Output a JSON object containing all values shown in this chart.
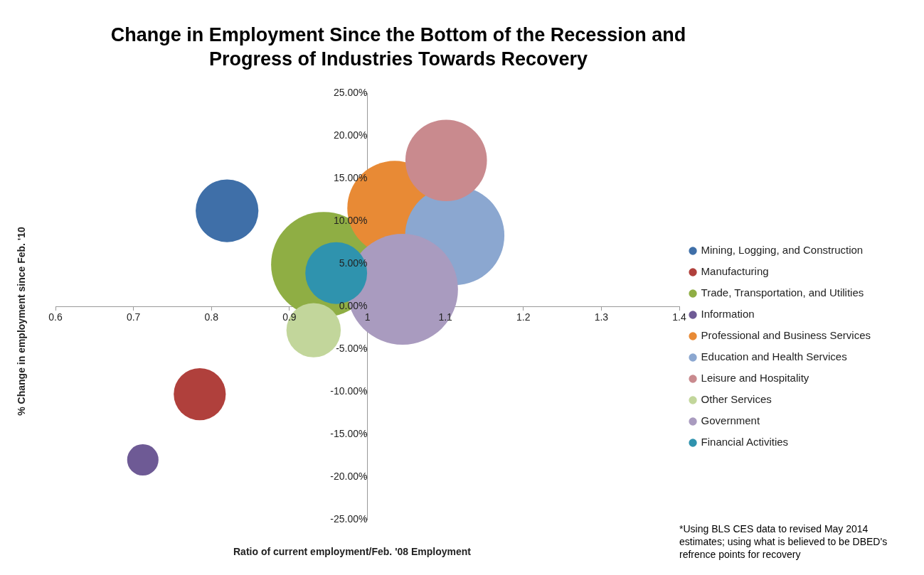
{
  "chart_data": {
    "type": "bubble",
    "title": "Change in Employment Since the Bottom of the Recession and Progress of Industries Towards Recovery",
    "xlabel": "Ratio of current employment/Feb. '08 Employment",
    "ylabel": "% Change in employment since Feb. '10",
    "xlim": [
      0.6,
      1.4
    ],
    "xticks": [
      0.6,
      0.7,
      0.8,
      0.9,
      1,
      1.1,
      1.2,
      1.3,
      1.4
    ],
    "ylim": [
      -25,
      25
    ],
    "yticks": [
      {
        "value": -25,
        "label": "-25.00%"
      },
      {
        "value": -20,
        "label": "-20.00%"
      },
      {
        "value": -15,
        "label": "-15.00%"
      },
      {
        "value": -10,
        "label": "-10.00%"
      },
      {
        "value": -5,
        "label": "-5.00%"
      },
      {
        "value": 0,
        "label": "0.00%"
      },
      {
        "value": 5,
        "label": "5.00%"
      },
      {
        "value": 10,
        "label": "10.00%"
      },
      {
        "value": 15,
        "label": "15.00%"
      },
      {
        "value": 20,
        "label": "20.00%"
      },
      {
        "value": 25,
        "label": "25.00%"
      }
    ],
    "legend": "right",
    "marker": "circle",
    "series": [
      {
        "name": "Mining, Logging, and Construction",
        "color": "#3f6fa8",
        "x": [
          0.82
        ],
        "values": [
          11.2
        ],
        "sizes": [
          0.32
        ]
      },
      {
        "name": "Manufacturing",
        "color": "#b0403c",
        "x": [
          0.785
        ],
        "values": [
          -10.3
        ],
        "sizes": [
          0.22
        ]
      },
      {
        "name": "Trade, Transportation, and Utilities",
        "color": "#8fae44",
        "x": [
          0.944
        ],
        "values": [
          4.9
        ],
        "sizes": [
          0.9
        ]
      },
      {
        "name": "Information",
        "color": "#6e5a95",
        "x": [
          0.712
        ],
        "values": [
          -18
        ],
        "sizes": [
          0.08
        ]
      },
      {
        "name": "Professional and Business Services",
        "color": "#e88a35",
        "x": [
          1.035
        ],
        "values": [
          11.5
        ],
        "sizes": [
          0.73
        ]
      },
      {
        "name": "Education and Health Services",
        "color": "#8ba7d0",
        "x": [
          1.112
        ],
        "values": [
          8.3
        ],
        "sizes": [
          0.8
        ]
      },
      {
        "name": "Leisure and Hospitality",
        "color": "#c98a8e",
        "x": [
          1.101
        ],
        "values": [
          17.1
        ],
        "sizes": [
          0.54
        ]
      },
      {
        "name": "Other Services",
        "color": "#c2d69b",
        "x": [
          0.931
        ],
        "values": [
          -2.8
        ],
        "sizes": [
          0.24
        ]
      },
      {
        "name": "Government",
        "color": "#a99bbf",
        "x": [
          1.045
        ],
        "values": [
          2
        ],
        "sizes": [
          1
        ]
      },
      {
        "name": "Financial Activities",
        "color": "#2f93ae",
        "x": [
          0.96
        ],
        "values": [
          3.9
        ],
        "sizes": [
          0.31
        ]
      }
    ],
    "annotations": [
      "*Using BLS CES data to revised May 2014 estimates; using what is believed to be DBED's refrence points for recovery"
    ]
  }
}
